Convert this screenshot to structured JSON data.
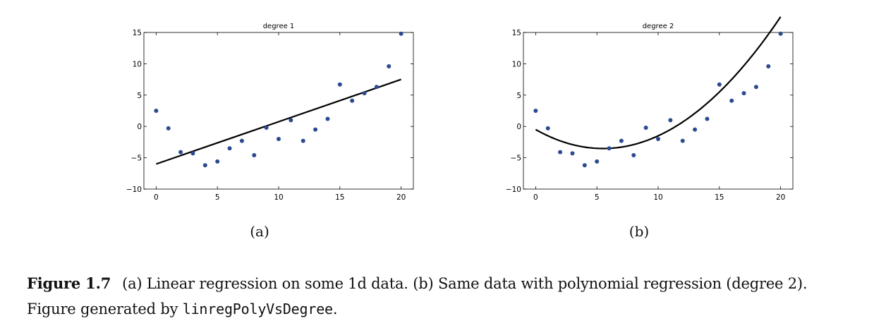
{
  "chart_data": [
    {
      "type": "scatter",
      "title": "degree 1",
      "panel_label": "(a)",
      "xlabel": "",
      "ylabel": "",
      "xlim": [
        -1,
        21
      ],
      "ylim": [
        -10,
        15
      ],
      "xticks": [
        0,
        5,
        10,
        15,
        20
      ],
      "yticks": [
        -10,
        -5,
        0,
        5,
        10,
        15
      ],
      "x": [
        0,
        1,
        2,
        3,
        4,
        5,
        6,
        7,
        8,
        9,
        10,
        11,
        12,
        13,
        14,
        15,
        16,
        17,
        18,
        19,
        20
      ],
      "y": [
        2.5,
        -0.3,
        -4.1,
        -4.3,
        -6.2,
        -5.6,
        -3.5,
        -2.3,
        -4.6,
        -0.2,
        -2.0,
        1.0,
        -2.3,
        -0.5,
        1.2,
        6.7,
        4.1,
        5.3,
        6.3,
        9.6,
        14.8
      ],
      "fit": {
        "name": "linear fit",
        "x": [
          0,
          20
        ],
        "y": [
          -6.0,
          7.5
        ]
      },
      "colors": {
        "points": "#2b4a8f",
        "fit": "#000000"
      }
    },
    {
      "type": "scatter",
      "title": "degree 2",
      "panel_label": "(b)",
      "xlabel": "",
      "ylabel": "",
      "xlim": [
        -1,
        21
      ],
      "ylim": [
        -10,
        15
      ],
      "xticks": [
        0,
        5,
        10,
        15,
        20
      ],
      "yticks": [
        -10,
        -5,
        0,
        5,
        10,
        15
      ],
      "x": [
        0,
        1,
        2,
        3,
        4,
        5,
        6,
        7,
        8,
        9,
        10,
        11,
        12,
        13,
        14,
        15,
        16,
        17,
        18,
        19,
        20
      ],
      "y": [
        2.5,
        -0.3,
        -4.1,
        -4.3,
        -6.2,
        -5.6,
        -3.5,
        -2.3,
        -4.6,
        -0.2,
        -2.0,
        1.0,
        -2.3,
        -0.5,
        1.2,
        6.7,
        4.1,
        5.3,
        6.3,
        9.6,
        14.8
      ],
      "fit": {
        "name": "quadratic fit",
        "coef": [
          -0.5,
          -1.1,
          0.1
        ]
      },
      "colors": {
        "points": "#2b4a8f",
        "fit": "#000000"
      }
    }
  ],
  "caption": {
    "figure_number": "Figure 1.7",
    "text": "(a) Linear regression on some 1d data.  (b) Same data with polynomial regression (degree 2).",
    "generated_prefix": "Figure generated by ",
    "code_name": "linregPolyVsDegree",
    "generated_suffix": "."
  }
}
